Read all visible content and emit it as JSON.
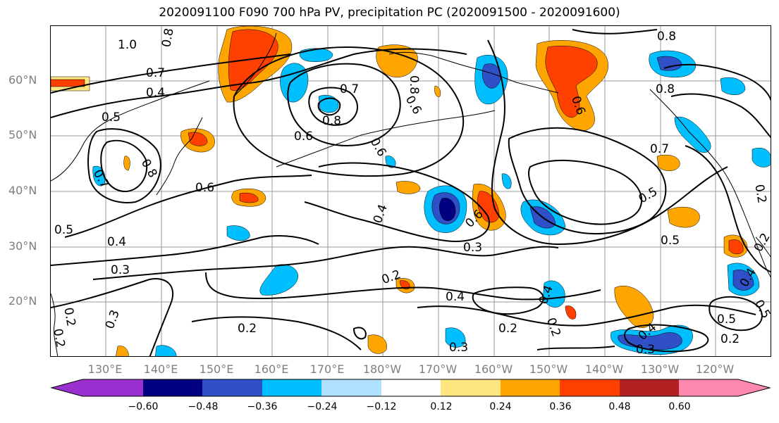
{
  "title": "2020091100 F090 700 hPa PV, precipitation PC (2020091500 - 2020091600)",
  "lat_labels": [
    "60°N",
    "50°N",
    "40°N",
    "30°N",
    "20°N"
  ],
  "lon_labels": [
    "130°E",
    "140°E",
    "150°E",
    "160°E",
    "170°E",
    "180°W",
    "170°W",
    "160°W",
    "150°W",
    "140°W",
    "130°W",
    "120°W"
  ],
  "contour_labels": [
    "1.0",
    "0.8",
    "0.7",
    "0.4",
    "0.5",
    "0.8",
    "0.7",
    "0.8",
    "0.6",
    "0.6",
    "0.6",
    "0.8",
    "0.6",
    "0.7",
    "0.4",
    "0.6",
    "0.5",
    "0.4",
    "0.3",
    "0.3",
    "0.2",
    "0.3",
    "0.4",
    "0.4",
    "0.3",
    "0.2",
    "0.2",
    "0.2",
    "0.4",
    "0.3",
    "0.5",
    "0.5",
    "0.8",
    "0.8",
    "0.6",
    "0.7",
    "0.5",
    "0.2",
    "0.2",
    "0.2",
    "0.5",
    "0.4",
    "0.2",
    "0.2"
  ],
  "colorbar": {
    "ticks": [
      "−0.60",
      "−0.48",
      "−0.36",
      "−0.24",
      "−0.12",
      "0.12",
      "0.24",
      "0.36",
      "0.48",
      "0.60"
    ],
    "colors": [
      "#9b30d0",
      "#000080",
      "#3050c8",
      "#00bfff",
      "#b0e0ff",
      "#ffffff",
      "#ffe680",
      "#ffa500",
      "#ff4000",
      "#b22222",
      "#ff88b0"
    ]
  },
  "colors": {
    "negative_strong": "#3050c8",
    "negative_mid": "#00bfff",
    "negative_weak": "#b0e0ff",
    "positive_weak": "#ffe680",
    "positive_mid": "#ffa500",
    "positive_strong": "#ff4000",
    "navy": "#000080"
  }
}
